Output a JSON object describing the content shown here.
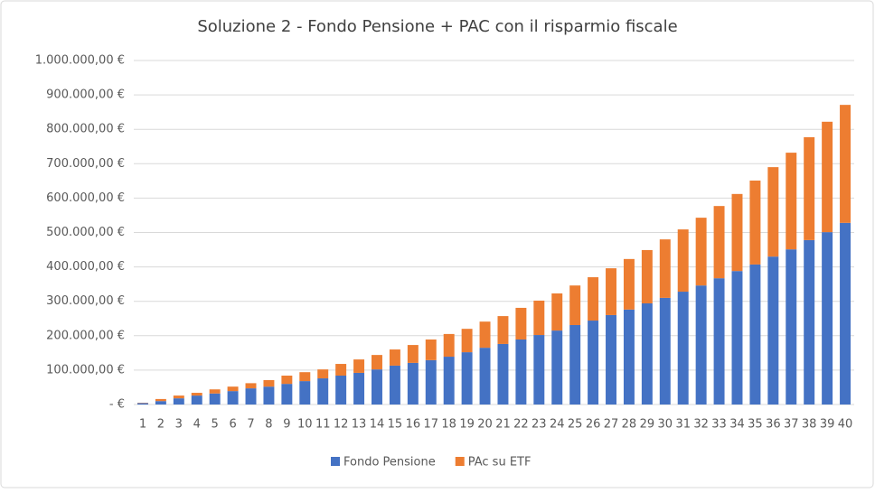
{
  "chart_data": {
    "type": "stacked_bar",
    "title": "Soluzione 2 - Fondo Pensione + PAC con il risparmio fiscale",
    "categories": [
      "1",
      "2",
      "3",
      "4",
      "5",
      "6",
      "7",
      "8",
      "9",
      "10",
      "11",
      "12",
      "13",
      "14",
      "15",
      "16",
      "17",
      "18",
      "19",
      "20",
      "21",
      "22",
      "23",
      "24",
      "25",
      "26",
      "27",
      "28",
      "29",
      "30",
      "31",
      "32",
      "33",
      "34",
      "35",
      "36",
      "37",
      "38",
      "39",
      "40"
    ],
    "series": [
      {
        "name": "Fondo Pensione",
        "color": "#4472c4",
        "values": [
          4000,
          10000,
          18000,
          26000,
          32000,
          39000,
          47000,
          52000,
          60000,
          68000,
          76000,
          84000,
          92000,
          102000,
          113000,
          121000,
          129000,
          139000,
          152000,
          165000,
          176000,
          189000,
          202000,
          215000,
          231000,
          244000,
          260000,
          276000,
          294000,
          310000,
          328000,
          346000,
          367000,
          388000,
          407000,
          430000,
          451000,
          478000,
          501000,
          528000
        ]
      },
      {
        "name": "PAc su ETF",
        "color": "#ed7d31",
        "values": [
          1000,
          6000,
          8000,
          8000,
          12000,
          13000,
          15000,
          19000,
          24000,
          26000,
          26000,
          34000,
          39000,
          42000,
          47000,
          52000,
          60000,
          66000,
          68000,
          76000,
          81000,
          92000,
          100000,
          108000,
          115000,
          126000,
          136000,
          147000,
          155000,
          170000,
          181000,
          197000,
          210000,
          224000,
          244000,
          260000,
          281000,
          299000,
          321000,
          343000
        ]
      }
    ],
    "ylim": [
      0,
      1000000
    ],
    "yticks": [
      {
        "value": 0,
        "label": "-   €"
      },
      {
        "value": 100000,
        "label": "100.000,00 €"
      },
      {
        "value": 200000,
        "label": "200.000,00 €"
      },
      {
        "value": 300000,
        "label": "300.000,00 €"
      },
      {
        "value": 400000,
        "label": "400.000,00 €"
      },
      {
        "value": 500000,
        "label": "500.000,00 €"
      },
      {
        "value": 600000,
        "label": "600.000,00 €"
      },
      {
        "value": 700000,
        "label": "700.000,00 €"
      },
      {
        "value": 800000,
        "label": "800.000,00 €"
      },
      {
        "value": 900000,
        "label": "900.000,00 €"
      },
      {
        "value": 1000000,
        "label": "1.000.000,00 €"
      }
    ],
    "grid": true,
    "legend": "bottom"
  }
}
